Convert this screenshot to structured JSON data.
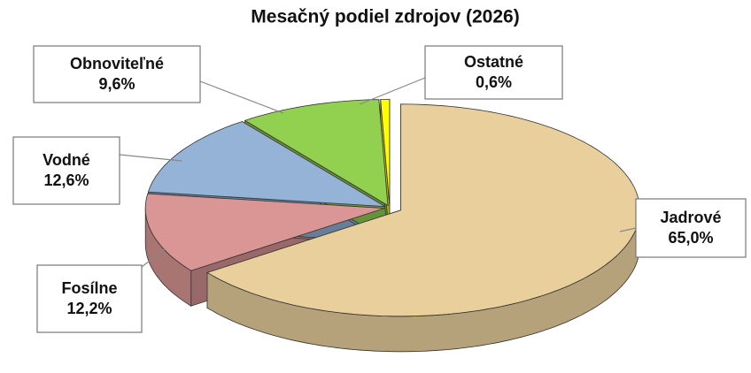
{
  "chart_data": {
    "type": "pie",
    "title": "Mesačný podiel zdrojov (2026)",
    "categories": [
      "Jadrové",
      "Fosílne",
      "Vodné",
      "Obnoviteľné",
      "Ostatné"
    ],
    "values": [
      65.0,
      12.2,
      12.6,
      9.6,
      0.6
    ],
    "value_labels": [
      "65,0%",
      "12,2%",
      "12,6%",
      "9,6%",
      "0,6%"
    ],
    "colors": [
      "#e8cf9c",
      "#d99694",
      "#95b3d7",
      "#92d050",
      "#ffff00"
    ]
  }
}
